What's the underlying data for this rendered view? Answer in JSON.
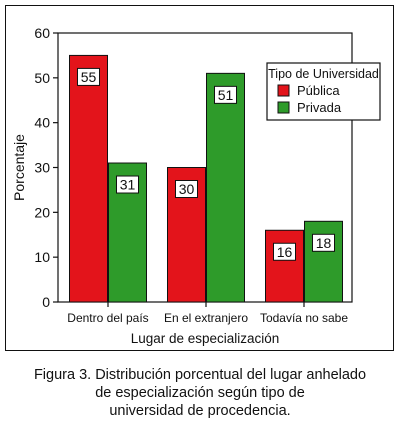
{
  "chart_data": {
    "type": "bar",
    "categories": [
      "Dentro del país",
      "En el extranjero",
      "Todavía no sabe"
    ],
    "series": [
      {
        "name": "Pública",
        "values": [
          55,
          30,
          16
        ],
        "color": "#e3141b"
      },
      {
        "name": "Privada",
        "values": [
          31,
          51,
          18
        ],
        "color": "#2e9b2a"
      }
    ],
    "xlabel": "Lugar de especialización",
    "ylabel": "Porcentaje",
    "ylim": [
      0,
      60
    ],
    "yticks": [
      0,
      10,
      20,
      30,
      40,
      50,
      60
    ],
    "legend": {
      "title": "Tipo de Universidad",
      "position": "top-right"
    },
    "grid": false,
    "data_labels": true
  },
  "caption": {
    "lines": [
      "Figura 3. Distribución porcentual del lugar anhelado",
      "de especialización según tipo de",
      "universidad de procedencia."
    ]
  }
}
